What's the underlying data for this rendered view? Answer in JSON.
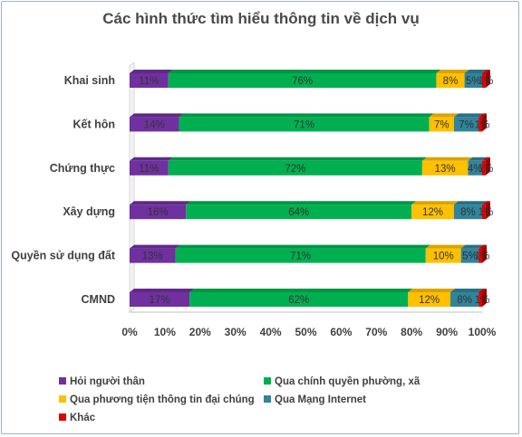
{
  "chart_data": {
    "type": "bar",
    "orientation": "horizontal",
    "stacked": "percent",
    "title": "Các hình thức tìm hiểu thông tin về dịch vụ",
    "categories": [
      "Khai sinh",
      "Kết hôn",
      "Chứng thực",
      "Xây dựng",
      "Quyền sử dụng đất",
      "CMND"
    ],
    "series": [
      {
        "name": "Hỏi người thân",
        "color": "#7030a0",
        "values": [
          11,
          14,
          11,
          16,
          13,
          17
        ],
        "labels": [
          "11%",
          "14%",
          "11%",
          "16%",
          "13%",
          "17%"
        ]
      },
      {
        "name": "Qua chính quyền phường, xã",
        "color": "#00b050",
        "values": [
          76,
          71,
          72,
          64,
          71,
          62
        ],
        "labels": [
          "76%",
          "71%",
          "72%",
          "64%",
          "71%",
          "62%"
        ]
      },
      {
        "name": "Qua phương tiện thông tin đại chúng",
        "color": "#ffc000",
        "values": [
          8,
          7,
          13,
          12,
          10,
          12
        ],
        "labels": [
          "8%",
          "7%",
          "13%",
          "12%",
          "10%",
          "12%"
        ]
      },
      {
        "name": "Qua Mạng Internet",
        "color": "#31849b",
        "values": [
          5,
          7,
          4,
          8,
          5,
          8
        ],
        "labels": [
          "5%",
          "7%",
          "4%",
          "8%",
          "5%",
          "8%"
        ]
      },
      {
        "name": "Khác",
        "color": "#e00000",
        "values": [
          1,
          1,
          1,
          1,
          1,
          1
        ],
        "labels": [
          "1%",
          "1%",
          "1%",
          "1%",
          "1%",
          "1%"
        ]
      }
    ],
    "x_ticks": [
      "0%",
      "10%",
      "20%",
      "30%",
      "40%",
      "50%",
      "60%",
      "70%",
      "80%",
      "90%",
      "100%"
    ],
    "xlim": [
      0,
      100
    ],
    "grid": false,
    "legend_position": "bottom"
  }
}
